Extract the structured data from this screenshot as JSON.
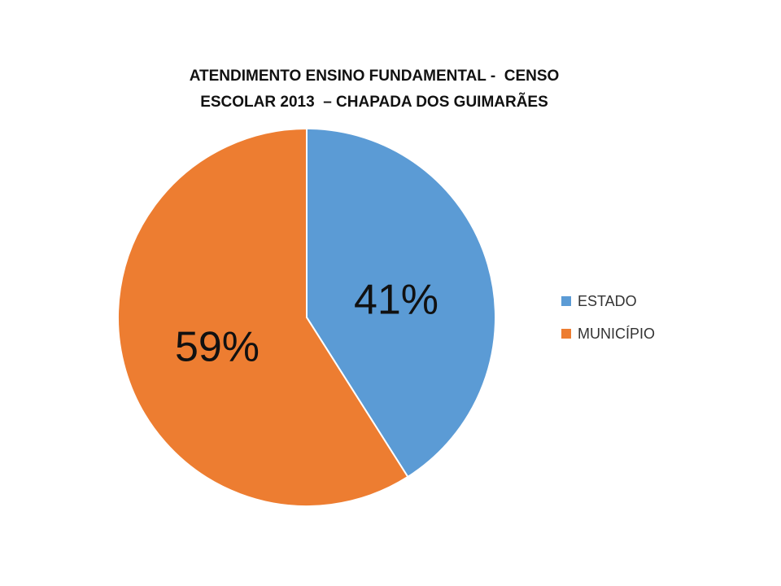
{
  "chart_data": {
    "type": "pie",
    "title": "ATENDIMENTO ENSINO FUNDAMENTAL -  CENSO ESCOLAR 2013  – CHAPADA DOS GUIMARÃES",
    "title_lines": [
      "ATENDIMENTO ENSINO FUNDAMENTAL -  CENSO",
      "ESCOLAR 2013  – CHAPADA DOS GUIMARÃES"
    ],
    "categories": [
      "ESTADO",
      "MUNICÍPIO"
    ],
    "values": [
      41,
      59
    ],
    "data_labels": [
      "41%",
      "59%"
    ],
    "colors": [
      "#5b9bd5",
      "#ed7d31"
    ],
    "legend_position": "right"
  }
}
